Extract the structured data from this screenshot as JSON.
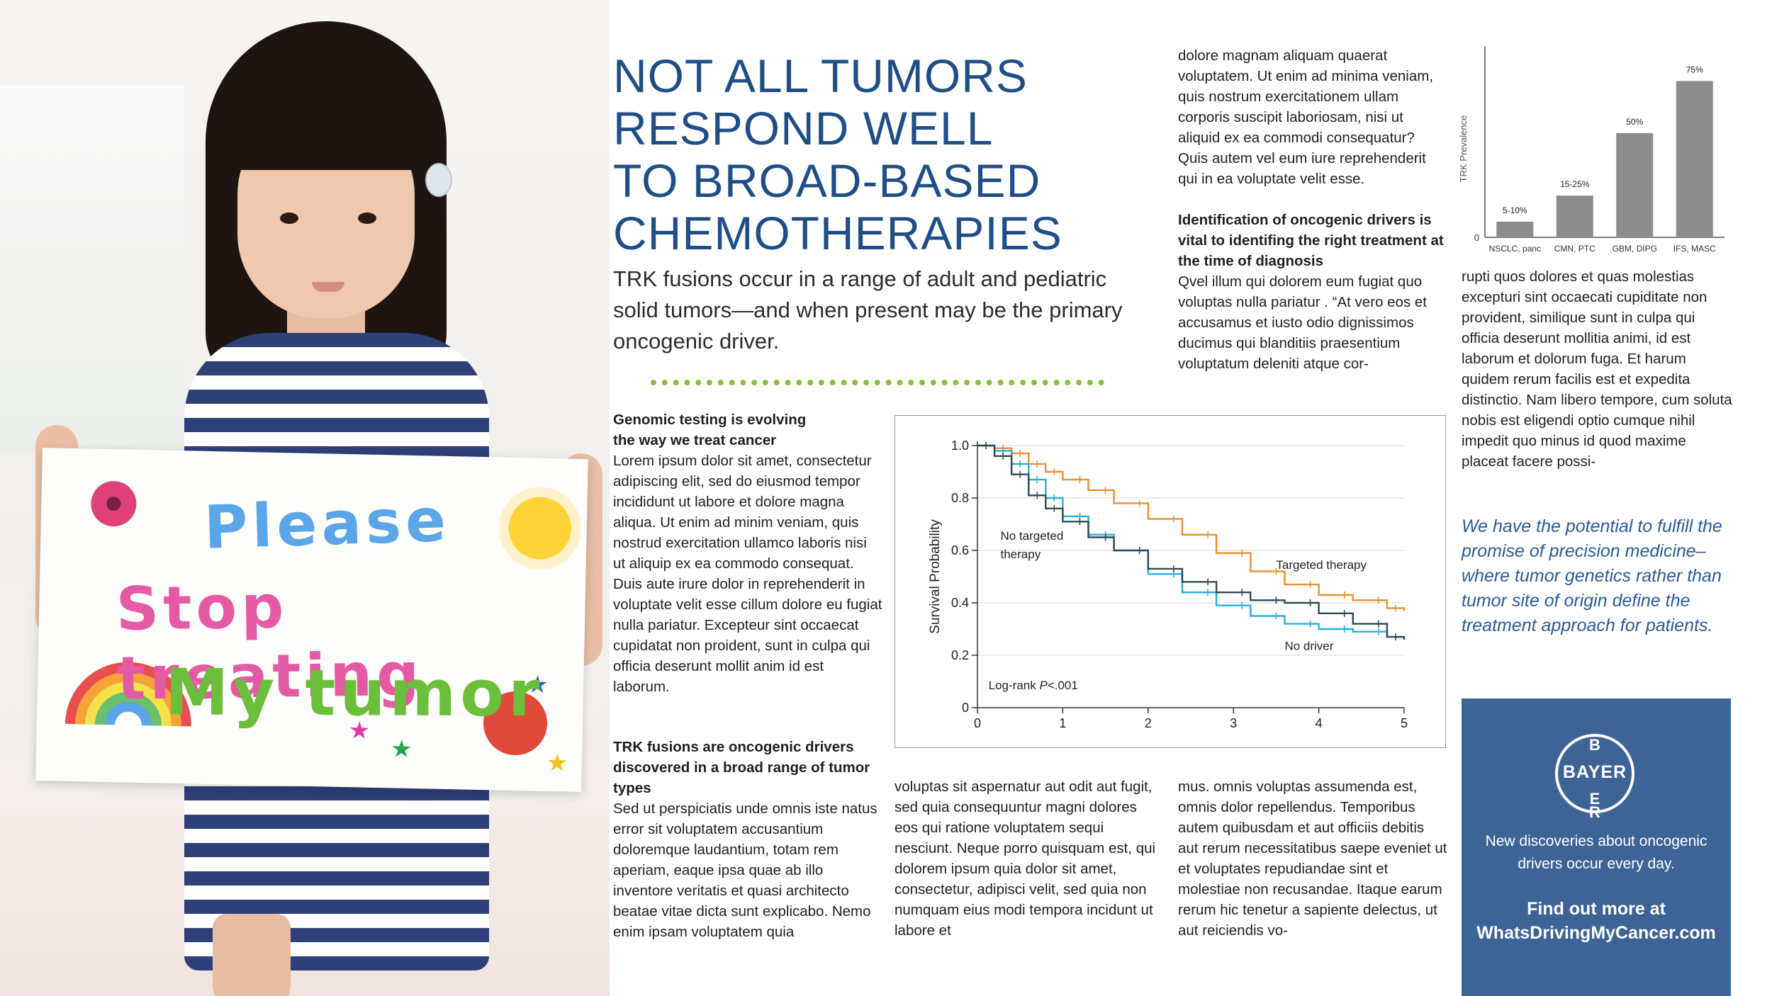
{
  "headline": [
    "NOT ALL TUMORS",
    "RESPOND WELL",
    "TO BROAD-BASED",
    "CHEMOTHERAPIES"
  ],
  "intro": "TRK fusions occur in a range of adult and pediatric solid tumors—and when present may be the primary oncogenic driver.",
  "sign": {
    "line1": "Please",
    "line2": "Stop treating",
    "line3": "My tumor"
  },
  "sections": {
    "genomic": {
      "heading_1": "Genomic testing is evolving",
      "heading_2": "the way we treat cancer",
      "text": "Lorem ipsum dolor sit amet, consectetur adipiscing elit, sed do eiusmod tempor incididunt ut labore et dolore magna aliqua. Ut enim ad minim veniam, quis nostrud exercitation ullamco laboris nisi ut aliquip ex ea commodo consequat. Duis aute irure dolor in reprehenderit in voluptate velit esse cillum dolore eu fugiat nulla pariatur. Excepteur sint occaecat cupidatat non proident, sunt in culpa qui officia deserunt mollit anim id est laborum."
    },
    "trk": {
      "heading": "TRK fusions are oncogenic drivers discovered in a broad range of tumor types",
      "text": "Sed ut perspiciatis unde omnis iste natus error sit voluptatem accusantium doloremque laudantium, totam rem aperiam, eaque ipsa quae ab illo inventore veritatis et quasi architecto beatae vitae dicta sunt explicabo. Nemo enim ipsam voluptatem quia"
    },
    "col2_text": "voluptas sit aspernatur aut odit aut fugit, sed quia consequuntur magni dolores eos qui ratione voluptatem sequi nesciunt. Neque porro quisquam est, qui dolorem ipsum quia dolor sit amet, consectetur, adipisci velit, sed quia non numquam eius modi tempora incidunt ut labore et",
    "col3_top_text": "dolore magnam aliquam quaerat voluptatem. Ut enim ad minima veniam, quis nostrum exercitationem ullam corporis suscipit laboriosam, nisi ut aliquid ex ea commodi consequatur? Quis autem vel eum iure reprehenderit qui in ea voluptate velit esse.",
    "identification": {
      "heading": "Identification of oncogenic drivers is vital to identifing the right treatment at the time of diagnosis",
      "text": "Qvel illum qui dolorem eum fugiat quo voluptas nulla pariatur . “At vero eos et accusamus et iusto odio dignissimos ducimus qui blanditiis praesentium voluptatum deleniti atque cor-"
    },
    "col3_bottom_text": "mus. omnis voluptas assumenda est, omnis dolor repellendus. Temporibus autem quibusdam et aut officiis debitis aut rerum necessitatibus saepe eveniet ut et voluptates repudiandae sint et molestiae non recusandae. Itaque earum rerum hic tenetur a sapiente delectus, ut aut reiciendis vo-",
    "col4_text": "rupti quos dolores et quas molestias excepturi sint occaecati cupiditate non provident, similique sunt in culpa qui officia deserunt mollitia animi, id est laborum et dolorum fuga. Et harum quidem rerum facilis est et expedita distinctio. Nam libero tempore, cum soluta nobis est eligendi optio cumque nihil impedit quo minus id quod maxime placeat facere possi-"
  },
  "pull_quote": "We have the potential to fulfill the promise of precision medicine–where tumor genetics rather than tumor site of origin define the treatment approach for patients.",
  "bayer": {
    "logo_horizontal": "BAYER",
    "logo_vertical": [
      "B",
      "A",
      "Y",
      "E",
      "R"
    ],
    "tagline": "New discoveries about oncogenic drivers occur every day.",
    "cta_1": "Find out more at",
    "cta_2": "WhatsDrivingMyCancer.com"
  },
  "chart_data": [
    {
      "type": "bar",
      "title": "",
      "ylabel": "TRK Prevalence",
      "categories": [
        "NSCLC, panc",
        "CMN, PTC",
        "GBM, DIPG",
        "IFS, MASC"
      ],
      "values": [
        7.5,
        20,
        50,
        75
      ],
      "data_labels": [
        "5-10%",
        "15-25%",
        "50%",
        "75%"
      ],
      "ylim": [
        0,
        85
      ],
      "yticks": [
        "0"
      ],
      "bar_color": "#8c8c8c"
    },
    {
      "type": "line",
      "title": "",
      "xlabel": "",
      "ylabel": "Survival Probability",
      "xlim": [
        0,
        5
      ],
      "ylim": [
        0,
        1.0
      ],
      "xticks": [
        "0",
        "1",
        "2",
        "3",
        "4",
        "5"
      ],
      "yticks": [
        "0",
        "0.2",
        "0.4",
        "0.6",
        "0.8",
        "1.0"
      ],
      "grid": true,
      "annotation_prefix": "Log-rank ",
      "annotation_italic": "P",
      "annotation_suffix": "<.001",
      "series": [
        {
          "name": "Targeted therapy",
          "color": "#e8912e",
          "x": [
            0,
            0.2,
            0.4,
            0.6,
            0.8,
            1.0,
            1.3,
            1.6,
            2.0,
            2.4,
            2.8,
            3.2,
            3.6,
            4.0,
            4.4,
            4.8,
            5.0
          ],
          "y": [
            1.0,
            0.99,
            0.97,
            0.93,
            0.9,
            0.87,
            0.83,
            0.78,
            0.72,
            0.66,
            0.59,
            0.52,
            0.47,
            0.43,
            0.41,
            0.38,
            0.37
          ]
        },
        {
          "name": "No targeted therapy",
          "color": "#29aee0",
          "x": [
            0,
            0.2,
            0.4,
            0.6,
            0.8,
            1.0,
            1.3,
            1.6,
            2.0,
            2.4,
            2.8,
            3.2,
            3.6,
            4.0,
            4.4,
            4.8,
            5.0
          ],
          "y": [
            1.0,
            0.98,
            0.93,
            0.87,
            0.8,
            0.73,
            0.66,
            0.6,
            0.51,
            0.44,
            0.39,
            0.35,
            0.32,
            0.3,
            0.29,
            0.27,
            0.26
          ]
        },
        {
          "name": "No driver",
          "color": "#2c4a55",
          "x": [
            0,
            0.2,
            0.4,
            0.6,
            0.8,
            1.0,
            1.3,
            1.6,
            2.0,
            2.4,
            2.8,
            3.2,
            3.6,
            4.0,
            4.4,
            4.8,
            5.0
          ],
          "y": [
            1.0,
            0.96,
            0.89,
            0.81,
            0.76,
            0.71,
            0.65,
            0.6,
            0.53,
            0.48,
            0.44,
            0.41,
            0.4,
            0.36,
            0.32,
            0.27,
            0.26
          ]
        }
      ]
    }
  ]
}
